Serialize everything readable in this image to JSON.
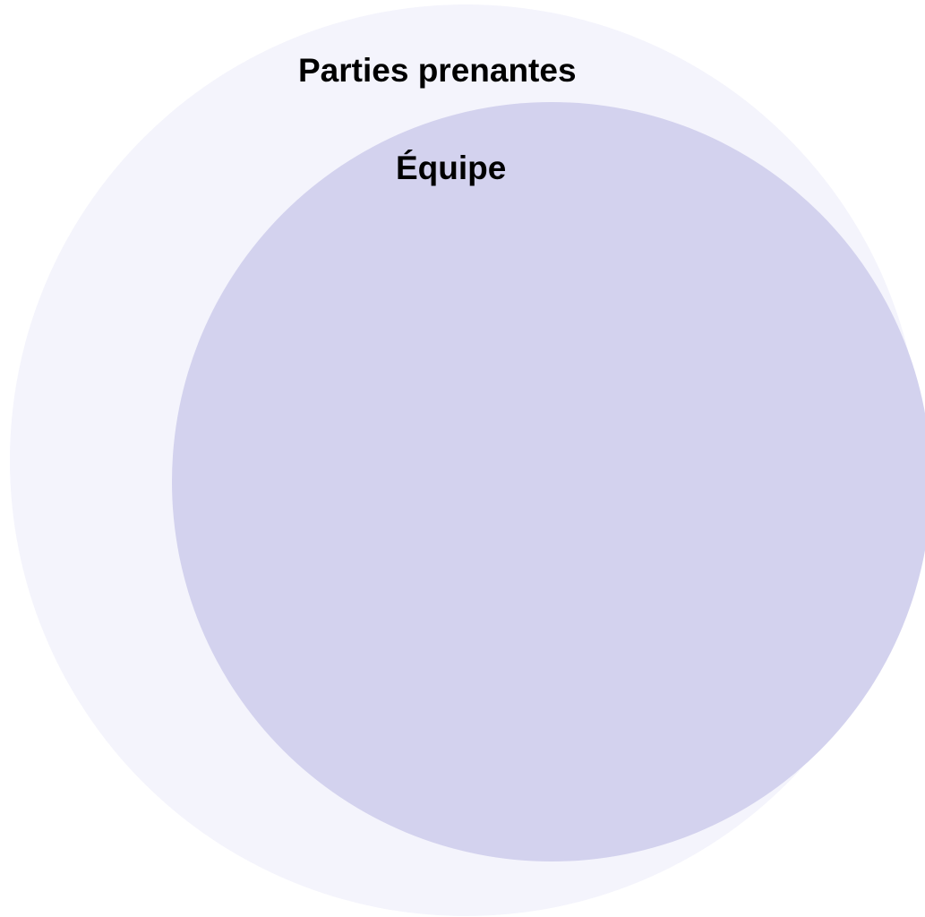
{
  "diagram": {
    "outer_circle": {
      "label": "Parties prenantes",
      "color": "#f4f4fc"
    },
    "inner_circle": {
      "label": "Équipe",
      "color": "#d3d2ee"
    }
  }
}
